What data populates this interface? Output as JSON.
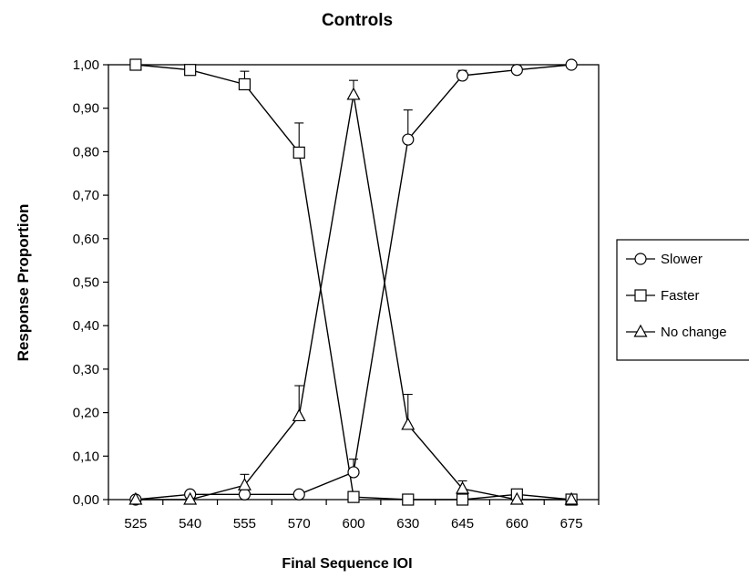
{
  "chart_data": {
    "type": "line",
    "title": "Controls",
    "xlabel": "Final Sequence IOI",
    "ylabel": "Response Proportion",
    "categories": [
      "525",
      "540",
      "555",
      "570",
      "600",
      "630",
      "645",
      "660",
      "675"
    ],
    "ylim": [
      0,
      1
    ],
    "yticks": [
      "0,00",
      "0,10",
      "0,20",
      "0,30",
      "0,40",
      "0,50",
      "0,60",
      "0,70",
      "0,80",
      "0,90",
      "1,00"
    ],
    "grid": false,
    "legend_position": "right",
    "series": [
      {
        "name": "Slower",
        "marker": "circle",
        "values": [
          0.0,
          0.012,
          0.012,
          0.012,
          0.063,
          0.828,
          0.975,
          0.988,
          1.0
        ],
        "error": [
          0,
          0,
          0,
          0,
          0.03,
          0.068,
          0.012,
          0,
          0
        ]
      },
      {
        "name": "Faster",
        "marker": "square",
        "values": [
          1.0,
          0.988,
          0.955,
          0.798,
          0.006,
          0.0,
          0.0,
          0.012,
          0.0
        ],
        "error": [
          0,
          0,
          0.03,
          0.068,
          0,
          0,
          0,
          0,
          0
        ]
      },
      {
        "name": "No change",
        "marker": "triangle",
        "values": [
          0.0,
          0.0,
          0.033,
          0.192,
          0.931,
          0.172,
          0.025,
          0.0,
          0.0
        ],
        "error": [
          0,
          0,
          0.025,
          0.07,
          0.033,
          0.07,
          0.018,
          0,
          0
        ]
      }
    ]
  }
}
